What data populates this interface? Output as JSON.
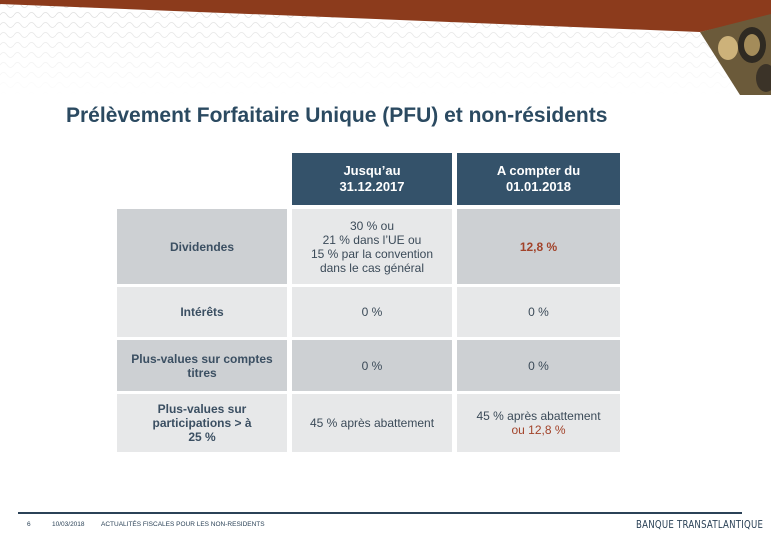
{
  "slide": {
    "title": "Prélèvement Forfaitaire Unique (PFU) et non-résidents"
  },
  "table": {
    "columns": [
      "Jusqu’au\n31.12.2017",
      "A compter du\n01.01.2018"
    ],
    "rows": [
      {
        "label": "Dividendes",
        "before": [
          "30 % ou",
          "21 % dans l’UE ou",
          "15 % par la convention",
          "dans le cas général"
        ],
        "after": [
          "12,8 %"
        ]
      },
      {
        "label": "Intérêts",
        "before": [
          "0 %"
        ],
        "after": [
          "0 %"
        ]
      },
      {
        "label": "Plus-values sur comptes titres",
        "before": [
          "0 %"
        ],
        "after": [
          "0 %"
        ]
      },
      {
        "label": "Plus-values sur participations > à 25 %",
        "before": [
          "45 % après abattement"
        ],
        "after": [
          "45 % après abattement",
          "ou 12,8 %"
        ]
      }
    ]
  },
  "footer": {
    "page": "6",
    "date": "10/03/2018",
    "section": "ACTUALITÉS FISCALES POUR LES NON-RESIDENTS",
    "brand": "BANQUE TRANSATLANTIQUE"
  },
  "colors": {
    "header_bg": "#34526a",
    "accent_red": "#a2432a",
    "band_brown": "#8c3b1c"
  }
}
